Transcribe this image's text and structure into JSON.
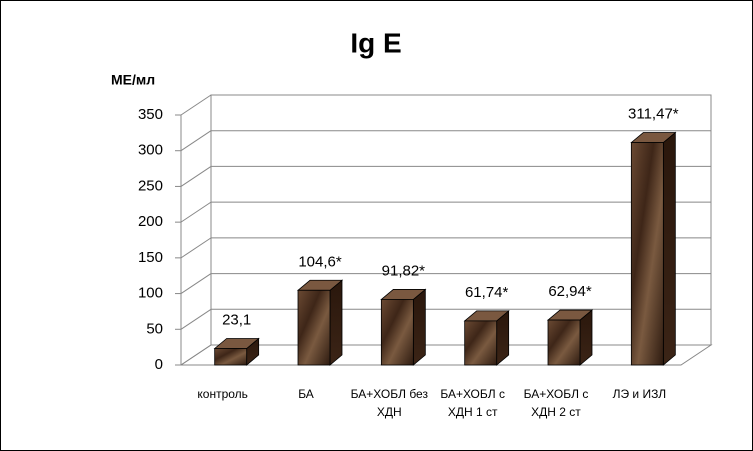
{
  "chart_data": {
    "type": "bar3d",
    "title": "Ig E",
    "y_label": "МЕ/мл",
    "categories": [
      "контроль",
      "БА",
      "БА+ХОБЛ без ХДН",
      "БА+ХОБЛ с ХДН 1 ст",
      "БА+ХОБЛ с ХДН 2 ст",
      "ЛЭ и ИЗЛ"
    ],
    "values": [
      23.1,
      104.6,
      91.82,
      61.74,
      62.94,
      311.47
    ],
    "value_labels": [
      "23,1",
      "104,6*",
      "91,82*",
      "61,74*",
      "62,94*",
      "311,47*"
    ],
    "ylim": [
      0,
      350
    ],
    "yticks": [
      0,
      50,
      100,
      150,
      200,
      250,
      300,
      350
    ],
    "grid": true
  }
}
